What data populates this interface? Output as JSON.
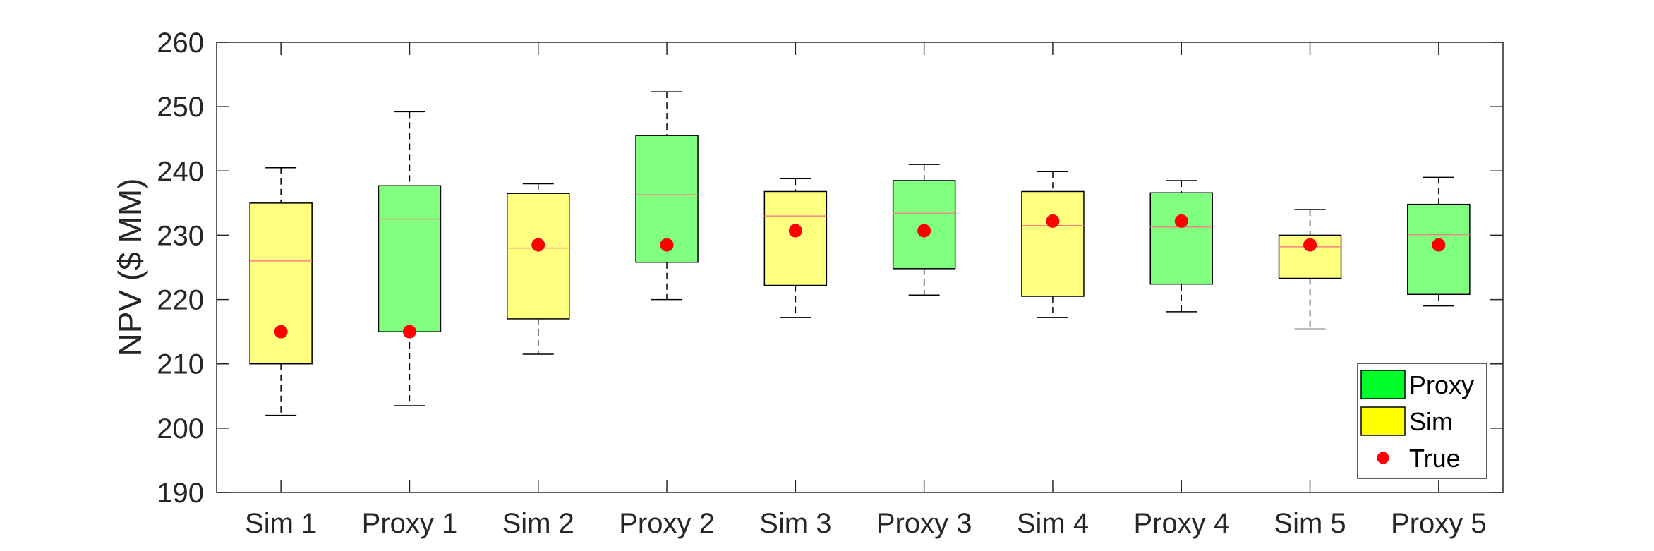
{
  "chart_data": {
    "type": "boxplot",
    "title": "",
    "xlabel": "",
    "ylabel": "NPV ($ MM)",
    "ylim": [
      190,
      260
    ],
    "yticks": [
      190,
      200,
      210,
      220,
      230,
      240,
      250,
      260
    ],
    "grid": false,
    "legend_position": "bottom-right",
    "colors": {
      "Proxy": "#80ff80",
      "Sim": "#ffff80",
      "legend_Proxy": "#00ff2a",
      "legend_Sim": "#ffff00",
      "True": "#ff0000",
      "median": "#ff8080"
    },
    "boxes": [
      {
        "label": "Sim 1",
        "group": "Sim",
        "whisker_low": 202,
        "q1": 210,
        "median": 226,
        "q3": 235,
        "whisker_high": 240.5,
        "true": 215
      },
      {
        "label": "Proxy 1",
        "group": "Proxy",
        "whisker_low": 203.5,
        "q1": 215,
        "median": 232.5,
        "q3": 237.7,
        "whisker_high": 249.2,
        "true": 215
      },
      {
        "label": "Sim 2",
        "group": "Sim",
        "whisker_low": 211.5,
        "q1": 217,
        "median": 228,
        "q3": 236.5,
        "whisker_high": 238,
        "true": 228.5
      },
      {
        "label": "Proxy 2",
        "group": "Proxy",
        "whisker_low": 220,
        "q1": 225.8,
        "median": 236.3,
        "q3": 245.5,
        "whisker_high": 252.3,
        "true": 228.5
      },
      {
        "label": "Sim 3",
        "group": "Sim",
        "whisker_low": 217.2,
        "q1": 222.2,
        "median": 233,
        "q3": 236.8,
        "whisker_high": 238.8,
        "true": 230.7
      },
      {
        "label": "Proxy 3",
        "group": "Proxy",
        "whisker_low": 220.7,
        "q1": 224.8,
        "median": 233.4,
        "q3": 238.5,
        "whisker_high": 241,
        "true": 230.7
      },
      {
        "label": "Sim 4",
        "group": "Sim",
        "whisker_low": 217.2,
        "q1": 220.5,
        "median": 231.5,
        "q3": 236.8,
        "whisker_high": 239.9,
        "true": 232.2
      },
      {
        "label": "Proxy 4",
        "group": "Proxy",
        "whisker_low": 218.1,
        "q1": 222.4,
        "median": 231.3,
        "q3": 236.6,
        "whisker_high": 238.5,
        "true": 232.2
      },
      {
        "label": "Sim 5",
        "group": "Sim",
        "whisker_low": 215.4,
        "q1": 223.3,
        "median": 228.2,
        "q3": 230,
        "whisker_high": 234,
        "true": 228.5
      },
      {
        "label": "Proxy 5",
        "group": "Proxy",
        "whisker_low": 219,
        "q1": 220.8,
        "median": 230.1,
        "q3": 234.8,
        "whisker_high": 239,
        "true": 228.5
      }
    ],
    "legend": [
      {
        "label": "Proxy",
        "kind": "patch",
        "color_key": "legend_Proxy"
      },
      {
        "label": "Sim",
        "kind": "patch",
        "color_key": "legend_Sim"
      },
      {
        "label": "True",
        "kind": "marker",
        "color_key": "True"
      }
    ]
  }
}
